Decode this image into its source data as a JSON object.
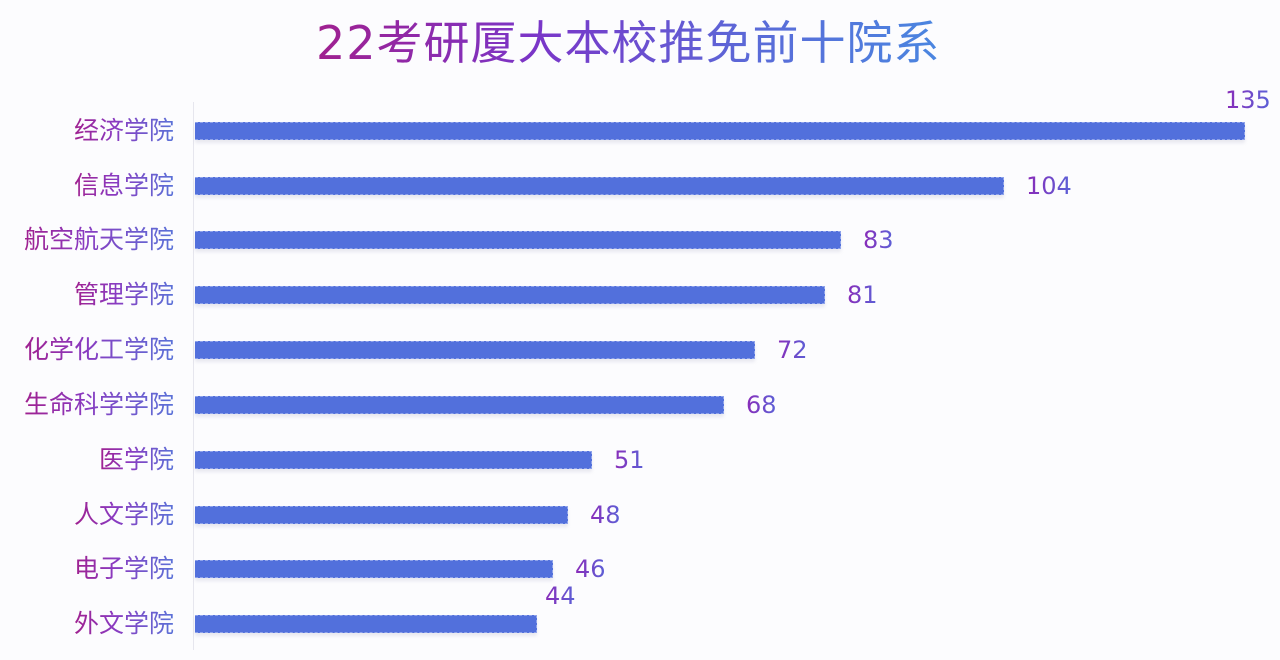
{
  "chart_data": {
    "type": "bar",
    "orientation": "horizontal",
    "title": "22考研厦大本校推免前十院系",
    "xlabel": "",
    "ylabel": "",
    "categories": [
      "经济学院",
      "信息学院",
      "航空航天学院",
      "管理学院",
      "化学化工学院",
      "生命科学学院",
      "医学院",
      "人文学院",
      "电子学院",
      "外文学院"
    ],
    "values": [
      135,
      104,
      83,
      81,
      72,
      68,
      51,
      48,
      46,
      44
    ],
    "xlim": [
      0,
      135
    ],
    "grid": false,
    "legend": null,
    "data_labels": true,
    "bar_color": "#5270dc",
    "title_gradient": [
      "#a0208f",
      "#4a86e0"
    ]
  },
  "rows": [
    {
      "label": "经济学院",
      "value": "135"
    },
    {
      "label": "信息学院",
      "value": "104"
    },
    {
      "label": "航空航天学院",
      "value": "83"
    },
    {
      "label": "管理学院",
      "value": "81"
    },
    {
      "label": "化学化工学院",
      "value": "72"
    },
    {
      "label": "生命科学学院",
      "value": "68"
    },
    {
      "label": "医学院",
      "value": "51"
    },
    {
      "label": "人文学院",
      "value": "48"
    },
    {
      "label": "电子学院",
      "value": "46"
    },
    {
      "label": "外文学院",
      "value": "44"
    }
  ]
}
